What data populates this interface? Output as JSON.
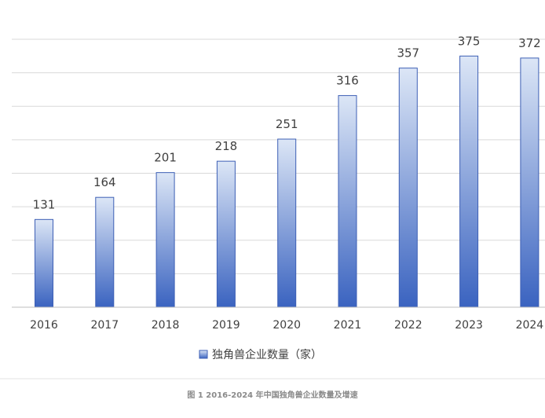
{
  "chart_data": {
    "type": "bar",
    "categories": [
      "2016",
      "2017",
      "2018",
      "2019",
      "2020",
      "2021",
      "2022",
      "2023",
      "2024"
    ],
    "series": [
      {
        "name": "独角兽企业数量（家）",
        "values": [
          131,
          164,
          201,
          218,
          251,
          316,
          357,
          375,
          372
        ]
      }
    ],
    "ylim": [
      0,
      400
    ],
    "ytick_step": 50,
    "grid": true,
    "legend_position": "bottom",
    "caption": "图 1 2016-2024 年中国独角兽企业数量及增速",
    "colors": {
      "bar_top": "#dce6f6",
      "bar_bottom": "#3a63c0",
      "bar_edge": "#3d5fb5",
      "grid": "#d9d9d9",
      "axis": "#bfbfbf"
    }
  }
}
